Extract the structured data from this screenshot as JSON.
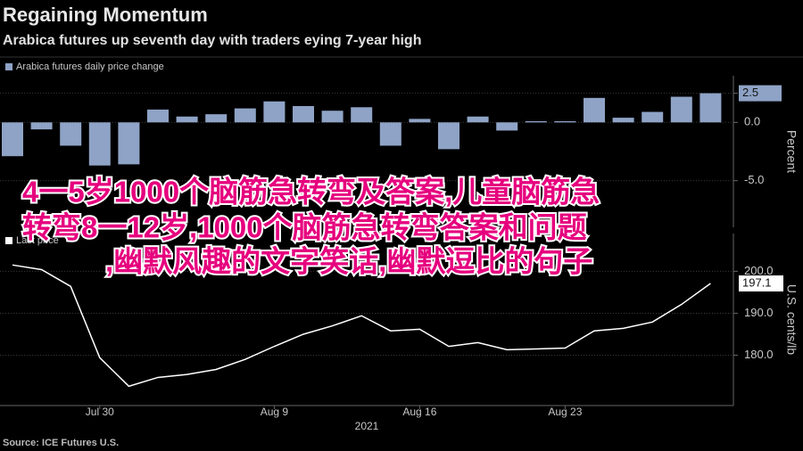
{
  "title": "Regaining Momentum",
  "subtitle": "Arabica futures up seventh day with traders eying 7-year high",
  "source": "Source: ICE Futures U.S.",
  "overlay": {
    "color": "#e6007e",
    "lines": [
      "4一5岁1000个脑筋急转弯及答案,儿童脑筋急",
      "转弯8一12岁,1000个脑筋急转弯答案和问题",
      ",幽默风趣的文字笑话,幽默逗比的句子"
    ]
  },
  "chart_data": [
    {
      "type": "bar",
      "y_label": "Percent",
      "axis_side": "right",
      "grid": true,
      "ylim": [
        -9,
        4
      ],
      "yticks": [
        2.5,
        {
          "value": 0,
          "label": "0.0"
        },
        {
          "value": -5,
          "label": "-5.0"
        }
      ],
      "series": [
        {
          "name": "Arabica futures daily price change",
          "color": "#8fa3c6",
          "values": [
            -2.9,
            -0.6,
            -2.0,
            -3.7,
            -3.6,
            1.1,
            0.5,
            0.7,
            1.2,
            1.8,
            1.4,
            1.0,
            1.3,
            -2.0,
            0.3,
            -2.3,
            0.5,
            -0.7,
            0.1,
            0.1,
            2.1,
            0.4,
            0.9,
            2.2,
            2.5
          ]
        }
      ]
    },
    {
      "type": "line",
      "x_label": "2021",
      "y_label": "U.S. cents/lb",
      "axis_side": "right",
      "grid": true,
      "categories": [
        null,
        null,
        null,
        "Jul 30",
        null,
        null,
        null,
        null,
        null,
        "Aug 9",
        null,
        null,
        null,
        null,
        "Aug 16",
        null,
        null,
        null,
        null,
        "Aug 23",
        null,
        null,
        null,
        null,
        null
      ],
      "ylim": [
        168,
        209
      ],
      "yticks": [
        {
          "value": 200,
          "label": "200.0"
        },
        {
          "value": 190,
          "label": "190.0"
        },
        {
          "value": 180,
          "label": "180.0"
        }
      ],
      "series": [
        {
          "name": "Last price",
          "color": "#ffffff",
          "values": [
            201.5,
            200.4,
            196.4,
            179.4,
            172.6,
            174.7,
            175.4,
            176.6,
            179.0,
            182.1,
            185.0,
            187.0,
            189.4,
            185.8,
            186.2,
            182.1,
            183.0,
            181.3,
            181.5,
            181.7,
            185.8,
            186.4,
            187.9,
            192.1,
            197.1
          ]
        }
      ]
    }
  ]
}
